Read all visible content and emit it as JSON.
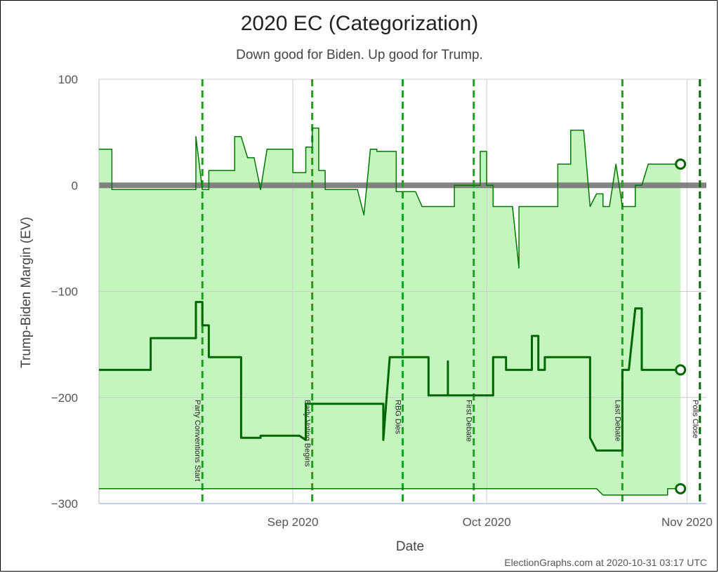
{
  "chart_data": {
    "type": "line",
    "title": "2020 EC (Categorization)",
    "subtitle": "Down good for Biden. Up good for Trump.",
    "xlabel": "Date",
    "ylabel": "Trump-Biden Margin (EV)",
    "ylim": [
      -300,
      100
    ],
    "y_ticks": [
      "100",
      "0",
      "−100",
      "−200",
      "−300"
    ],
    "y_tick_values": [
      100,
      0,
      -100,
      -200,
      -300
    ],
    "x_range": [
      "2020-08-02",
      "2020-11-04"
    ],
    "x_ticks": [
      {
        "date": "2020-09-01",
        "label": "Sep 2020"
      },
      {
        "date": "2020-10-01",
        "label": "Oct 2020"
      },
      {
        "date": "2020-11-01",
        "label": "Nov 2020"
      }
    ],
    "grid": true,
    "colors": {
      "line": "#007700",
      "center_line": "#006600",
      "fill": "#c4f5be",
      "zero_line": "#777777",
      "event_line": "#1f9e1f",
      "final_event_line": "#006b00",
      "grid": "#cccccc"
    },
    "events": [
      {
        "date": "2020-08-18",
        "label": "Party Conventions Start"
      },
      {
        "date": "2020-09-04",
        "label": "Early Voting Begins"
      },
      {
        "date": "2020-09-18",
        "label": "RBG Dies"
      },
      {
        "date": "2020-09-29",
        "label": "First Debate"
      },
      {
        "date": "2020-10-22",
        "label": "Last Debate"
      },
      {
        "date": "2020-11-03",
        "label": "Polls Close",
        "final": true
      }
    ],
    "series": [
      {
        "role": "upper",
        "points": [
          [
            "2020-08-02",
            34
          ],
          [
            "2020-08-04",
            34
          ],
          [
            "2020-08-04",
            -4
          ],
          [
            "2020-08-17",
            -4
          ],
          [
            "2020-08-17",
            46
          ],
          [
            "2020-08-18",
            -4
          ],
          [
            "2020-08-19",
            -4
          ],
          [
            "2020-08-19",
            14
          ],
          [
            "2020-08-23",
            14
          ],
          [
            "2020-08-23",
            46
          ],
          [
            "2020-08-24",
            46
          ],
          [
            "2020-08-25",
            26
          ],
          [
            "2020-08-26",
            26
          ],
          [
            "2020-08-27",
            -4
          ],
          [
            "2020-08-28",
            34
          ],
          [
            "2020-08-31",
            34
          ],
          [
            "2020-09-01",
            34
          ],
          [
            "2020-09-01",
            12
          ],
          [
            "2020-09-03",
            12
          ],
          [
            "2020-09-03",
            36
          ],
          [
            "2020-09-04",
            36
          ],
          [
            "2020-09-04",
            54
          ],
          [
            "2020-09-05",
            54
          ],
          [
            "2020-09-05",
            14
          ],
          [
            "2020-09-06",
            14
          ],
          [
            "2020-09-06",
            -4
          ],
          [
            "2020-09-11",
            -4
          ],
          [
            "2020-09-12",
            -28
          ],
          [
            "2020-09-13",
            34
          ],
          [
            "2020-09-14",
            34
          ],
          [
            "2020-09-14",
            32
          ],
          [
            "2020-09-15",
            32
          ],
          [
            "2020-09-17",
            32
          ],
          [
            "2020-09-17",
            -6
          ],
          [
            "2020-09-20",
            -6
          ],
          [
            "2020-09-21",
            -20
          ],
          [
            "2020-09-26",
            -20
          ],
          [
            "2020-09-26",
            0
          ],
          [
            "2020-09-30",
            0
          ],
          [
            "2020-09-30",
            32
          ],
          [
            "2020-10-01",
            32
          ],
          [
            "2020-10-01",
            0
          ],
          [
            "2020-10-02",
            0
          ],
          [
            "2020-10-02",
            -20
          ],
          [
            "2020-10-05",
            -20
          ],
          [
            "2020-10-06",
            -78
          ],
          [
            "2020-10-06",
            -20
          ],
          [
            "2020-10-12",
            -20
          ],
          [
            "2020-10-12",
            20
          ],
          [
            "2020-10-14",
            20
          ],
          [
            "2020-10-14",
            52
          ],
          [
            "2020-10-16",
            52
          ],
          [
            "2020-10-17",
            -20
          ],
          [
            "2020-10-17",
            -20
          ],
          [
            "2020-10-18",
            -8
          ],
          [
            "2020-10-19",
            -8
          ],
          [
            "2020-10-19",
            -20
          ],
          [
            "2020-10-20",
            -20
          ],
          [
            "2020-10-21",
            20
          ],
          [
            "2020-10-21",
            20
          ],
          [
            "2020-10-22",
            -20
          ],
          [
            "2020-10-24",
            -20
          ],
          [
            "2020-10-24",
            0
          ],
          [
            "2020-10-25",
            0
          ],
          [
            "2020-10-26",
            20
          ],
          [
            "2020-10-31",
            20
          ]
        ]
      },
      {
        "role": "center",
        "points": [
          [
            "2020-08-02",
            -174
          ],
          [
            "2020-08-10",
            -174
          ],
          [
            "2020-08-10",
            -144
          ],
          [
            "2020-08-17",
            -144
          ],
          [
            "2020-08-17",
            -110
          ],
          [
            "2020-08-18",
            -110
          ],
          [
            "2020-08-18",
            -132
          ],
          [
            "2020-08-19",
            -132
          ],
          [
            "2020-08-19",
            -162
          ],
          [
            "2020-08-22",
            -162
          ],
          [
            "2020-08-22",
            -162
          ],
          [
            "2020-08-24",
            -162
          ],
          [
            "2020-08-24",
            -238
          ],
          [
            "2020-08-27",
            -238
          ],
          [
            "2020-08-27",
            -236
          ],
          [
            "2020-09-02",
            -236
          ],
          [
            "2020-09-03",
            -240
          ],
          [
            "2020-09-03",
            -206
          ],
          [
            "2020-09-15",
            -206
          ],
          [
            "2020-09-15",
            -240
          ],
          [
            "2020-09-16",
            -162
          ],
          [
            "2020-09-22",
            -162
          ],
          [
            "2020-09-22",
            -198
          ],
          [
            "2020-09-24",
            -198
          ],
          [
            "2020-09-25",
            -198
          ],
          [
            "2020-09-25",
            -166
          ],
          [
            "2020-09-25",
            -198
          ],
          [
            "2020-10-02",
            -198
          ],
          [
            "2020-10-02",
            -162
          ],
          [
            "2020-10-04",
            -162
          ],
          [
            "2020-10-04",
            -174
          ],
          [
            "2020-10-08",
            -174
          ],
          [
            "2020-10-08",
            -142
          ],
          [
            "2020-10-09",
            -142
          ],
          [
            "2020-10-09",
            -174
          ],
          [
            "2020-10-10",
            -174
          ],
          [
            "2020-10-10",
            -162
          ],
          [
            "2020-10-17",
            -162
          ],
          [
            "2020-10-17",
            -238
          ],
          [
            "2020-10-18",
            -250
          ],
          [
            "2020-10-22",
            -250
          ],
          [
            "2020-10-22",
            -174
          ],
          [
            "2020-10-23",
            -174
          ],
          [
            "2020-10-24",
            -116
          ],
          [
            "2020-10-25",
            -116
          ],
          [
            "2020-10-25",
            -174
          ],
          [
            "2020-10-31",
            -174
          ]
        ]
      },
      {
        "role": "lower",
        "points": [
          [
            "2020-08-02",
            -286
          ],
          [
            "2020-10-18",
            -286
          ],
          [
            "2020-10-19",
            -292
          ],
          [
            "2020-10-29",
            -292
          ],
          [
            "2020-10-29",
            -286
          ],
          [
            "2020-10-31",
            -286
          ]
        ]
      }
    ]
  },
  "footer": {
    "credit": "ElectionGraphs.com at 2020-10-31 03:17 UTC"
  }
}
